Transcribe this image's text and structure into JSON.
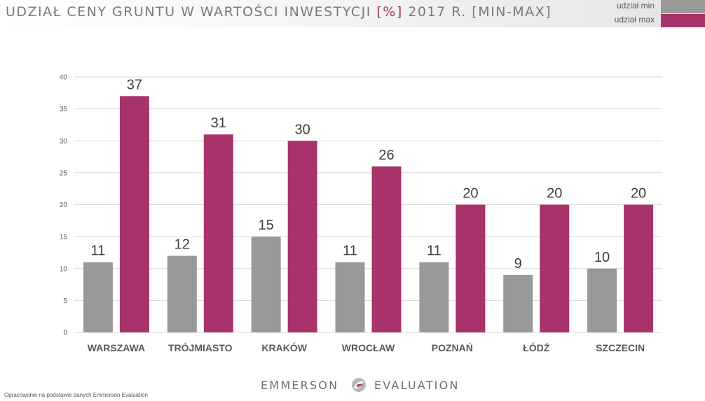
{
  "header": {
    "title_main": "UDZIAŁ CENY GRUNTU W WARTOŚCI INWESTYCJI ",
    "title_accent": "[%]",
    "title_tail": " 2017 R. [MIN-MAX]"
  },
  "colors": {
    "min": "#999999",
    "max": "#a8336b",
    "grid": "#d9d9d9",
    "axis_text": "#595959"
  },
  "legend": {
    "min_label": "udział min",
    "max_label": "udział max"
  },
  "chart_data": {
    "type": "bar",
    "title": "UDZIAŁ CENY GRUNTU W WARTOŚCI INWESTYCJI [%] 2017 R. [MIN-MAX]",
    "categories": [
      "WARSZAWA",
      "TRÓJMIASTO",
      "KRAKÓW",
      "WROCŁAW",
      "POZNAŃ",
      "ŁÓDŹ",
      "SZCZECIN"
    ],
    "series": [
      {
        "name": "udział min",
        "values": [
          11,
          12,
          15,
          11,
          11,
          9,
          10
        ]
      },
      {
        "name": "udział max",
        "values": [
          37,
          31,
          30,
          26,
          20,
          20,
          20
        ]
      }
    ],
    "ylim": [
      0,
      40
    ],
    "yticks": [
      0,
      5,
      10,
      15,
      20,
      25,
      30,
      35,
      40
    ],
    "grid": true,
    "legend_position": "top-right",
    "xlabel": "",
    "ylabel": ""
  },
  "footer": {
    "note": "Opracowanie na podstawie danych Emmerson Evaluation",
    "logo_left": "EMMERSON",
    "logo_right": "EVALUATION"
  }
}
